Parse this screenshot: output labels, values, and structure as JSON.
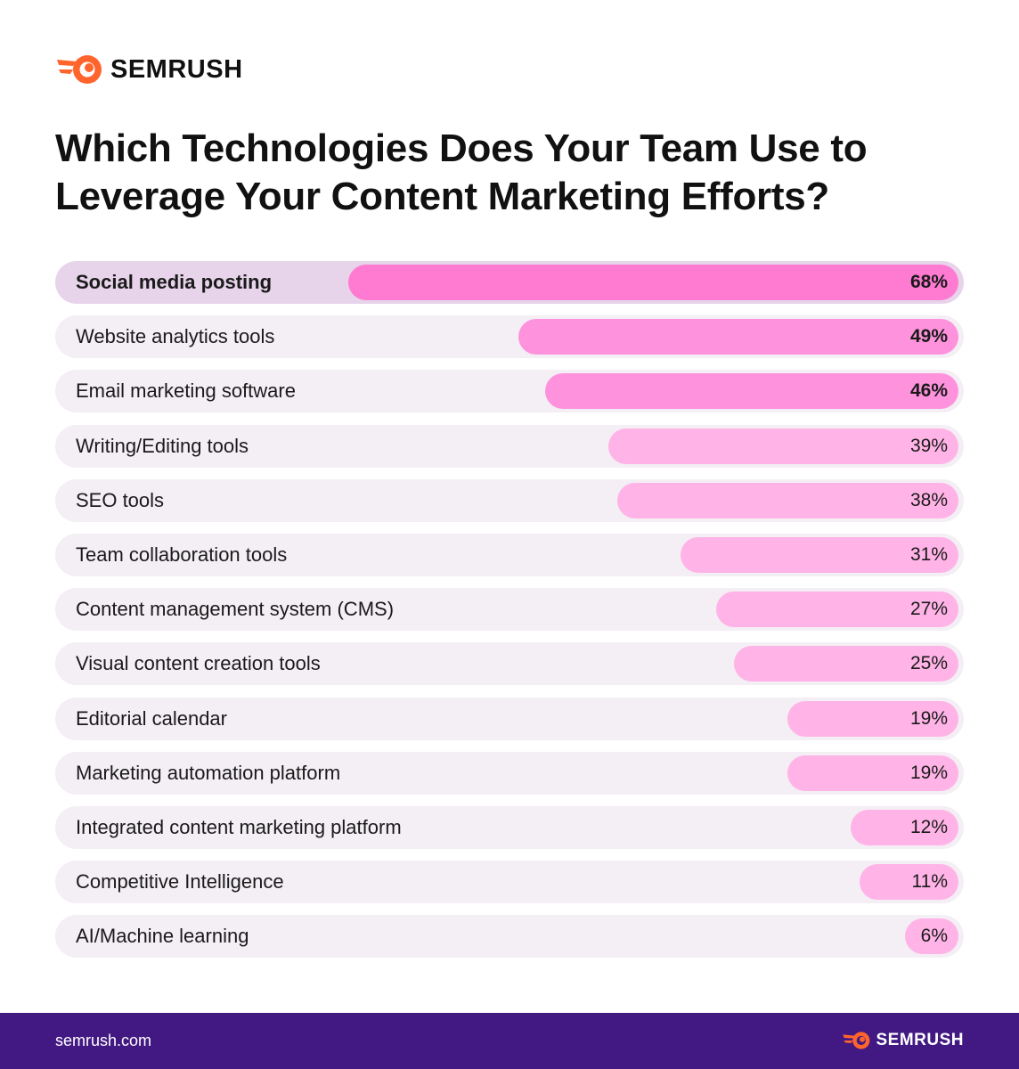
{
  "brand": {
    "name": "SEMRUSH",
    "color": "#ff642d"
  },
  "footer": {
    "url": "semrush.com",
    "brand": "SEMRUSH",
    "background": "#421983"
  },
  "chart_data": {
    "type": "bar",
    "orientation": "horizontal",
    "title_line1": "Which Technologies Does Your Team Use to",
    "title_line2": "Leverage Your Content Marketing Efforts?",
    "unit": "%",
    "xlim": [
      0,
      100
    ],
    "grid": false,
    "categories": [
      "Social media posting",
      "Website analytics tools",
      "Email marketing software",
      "Writing/Editing tools",
      "SEO tools",
      "Team collaboration tools",
      "Content management system (CMS)",
      "Visual content creation tools",
      "Editorial calendar",
      "Marketing automation platform",
      "Integrated content marketing platform",
      "Competitive Intelligence",
      "AI/Machine learning"
    ],
    "values": [
      68,
      49,
      46,
      39,
      38,
      31,
      27,
      25,
      19,
      19,
      12,
      11,
      6
    ],
    "labels": [
      "68%",
      "49%",
      "46%",
      "39%",
      "38%",
      "31%",
      "27%",
      "25%",
      "19%",
      "19%",
      "12%",
      "11%",
      "6%"
    ],
    "colors": {
      "top": "#ff7ad1",
      "strong": "#ff92dc",
      "light": "#ffb3e6",
      "track": "#f4eef5",
      "track_highlight": "#e7d3ea"
    }
  }
}
